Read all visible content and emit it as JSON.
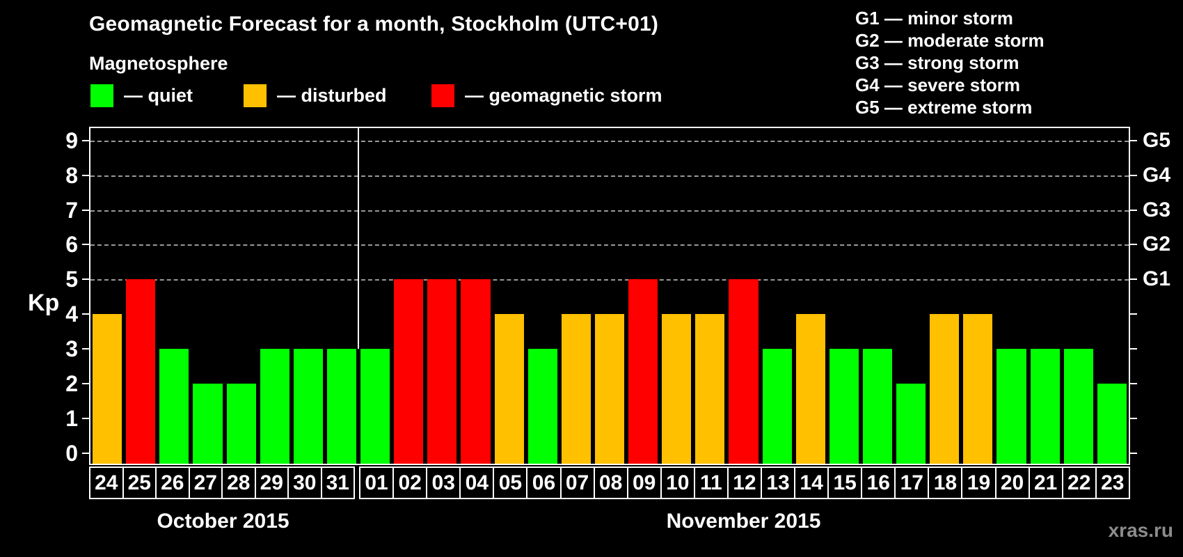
{
  "header": {
    "title": "Geomagnetic Forecast for a month, Stockholm (UTC+01)"
  },
  "magnetosphere_legend": {
    "title": "Magnetosphere",
    "items": [
      {
        "id": "quiet",
        "label": "— quiet",
        "color": "#00ff00"
      },
      {
        "id": "disturbed",
        "label": "— disturbed",
        "color": "#ffc000"
      },
      {
        "id": "storm",
        "label": "— geomagnetic storm",
        "color": "#ff0000"
      }
    ]
  },
  "g_legend": {
    "items": [
      "G1 — minor storm",
      "G2 — moderate storm",
      "G3 — strong storm",
      "G4 — severe storm",
      "G5 — extreme storm"
    ]
  },
  "watermark": "xras.ru",
  "chart_data": {
    "type": "bar",
    "title": "Geomagnetic Forecast for a month, Stockholm (UTC+01)",
    "ylabel": "Kp",
    "ylim": [
      0,
      9
    ],
    "yticks": [
      0,
      1,
      2,
      3,
      4,
      5,
      6,
      7,
      8,
      9
    ],
    "gridlines_at": [
      5,
      6,
      7,
      8,
      9
    ],
    "grid": true,
    "legend_position": "top-left",
    "right_axis_labels": [
      {
        "value": 5,
        "label": "G1"
      },
      {
        "value": 6,
        "label": "G2"
      },
      {
        "value": 7,
        "label": "G3"
      },
      {
        "value": 8,
        "label": "G4"
      },
      {
        "value": 9,
        "label": "G5"
      }
    ],
    "color_map": {
      "quiet": "#00ff00",
      "disturbed": "#ffc000",
      "storm": "#ff0000"
    },
    "groups": [
      {
        "label": "October 2015",
        "days": [
          "24",
          "25",
          "26",
          "27",
          "28",
          "29",
          "30",
          "31"
        ],
        "values": [
          4,
          5,
          3,
          2,
          2,
          3,
          3,
          3
        ],
        "status": [
          "disturbed",
          "storm",
          "quiet",
          "quiet",
          "quiet",
          "quiet",
          "quiet",
          "quiet"
        ]
      },
      {
        "label": "November 2015",
        "days": [
          "01",
          "02",
          "03",
          "04",
          "05",
          "06",
          "07",
          "08",
          "09",
          "10",
          "11",
          "12",
          "13",
          "14",
          "15",
          "16",
          "17",
          "18",
          "19",
          "20",
          "21",
          "22",
          "23"
        ],
        "values": [
          3,
          5,
          5,
          5,
          4,
          3,
          4,
          4,
          5,
          4,
          4,
          5,
          3,
          4,
          3,
          3,
          2,
          4,
          4,
          3,
          3,
          3,
          2
        ],
        "status": [
          "quiet",
          "storm",
          "storm",
          "storm",
          "disturbed",
          "quiet",
          "disturbed",
          "disturbed",
          "storm",
          "disturbed",
          "disturbed",
          "storm",
          "quiet",
          "disturbed",
          "quiet",
          "quiet",
          "quiet",
          "disturbed",
          "disturbed",
          "quiet",
          "quiet",
          "quiet",
          "quiet"
        ]
      }
    ]
  }
}
